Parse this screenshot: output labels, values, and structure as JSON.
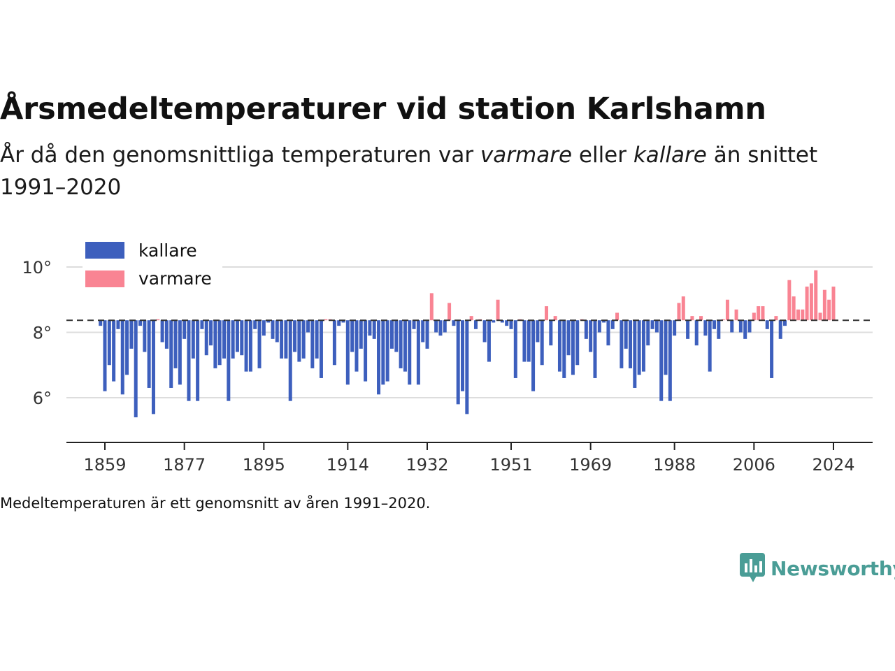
{
  "chart_data": {
    "type": "bar",
    "title": "Årsmedeltemperaturer vid station Karlshamn",
    "subtitle_parts": [
      "År då den genomsnittliga temperaturen var ",
      "varmare",
      " eller ",
      "kallare",
      " än snittet 1991–2020"
    ],
    "footnote": "Medeltemperaturen är ett genomsnitt av åren 1991–2020.",
    "baseline": 8.37,
    "xlim": [
      1858,
      2024
    ],
    "ylim": [
      4.6,
      10.8
    ],
    "yticks": [
      6,
      8,
      10
    ],
    "ytick_labels": [
      "6°",
      "8°",
      "10°"
    ],
    "xticks": [
      1859,
      1877,
      1895,
      1914,
      1932,
      1951,
      1969,
      1988,
      2006,
      2024
    ],
    "grid": true,
    "legend_position": "top-left",
    "series": [
      {
        "name": "kallare",
        "color": "#3d5fbd"
      },
      {
        "name": "varmare",
        "color": "#f98493"
      }
    ],
    "x_start": 1858,
    "values": [
      8.2,
      6.2,
      7.0,
      6.5,
      8.1,
      6.1,
      6.7,
      7.5,
      5.4,
      8.2,
      7.4,
      6.3,
      5.5,
      8.4,
      7.7,
      7.5,
      6.3,
      6.9,
      6.4,
      7.8,
      5.9,
      7.2,
      5.9,
      8.1,
      7.3,
      7.6,
      6.9,
      7.0,
      7.2,
      5.9,
      7.2,
      7.4,
      7.3,
      6.8,
      6.8,
      8.1,
      6.9,
      7.9,
      8.3,
      7.8,
      7.7,
      7.2,
      7.2,
      5.9,
      7.4,
      7.1,
      7.2,
      8.0,
      6.9,
      7.2,
      6.6,
      8.4,
      8.4,
      7.0,
      8.2,
      8.3,
      6.4,
      7.4,
      6.8,
      7.5,
      6.5,
      7.9,
      7.8,
      6.1,
      6.4,
      6.5,
      7.5,
      7.4,
      6.9,
      6.8,
      6.4,
      8.1,
      6.4,
      7.7,
      7.5,
      9.2,
      8.0,
      7.9,
      8.0,
      8.9,
      8.2,
      5.8,
      6.2,
      5.5,
      8.5,
      8.1,
      8.4,
      7.7,
      7.1,
      8.3,
      9.0,
      8.3,
      8.2,
      8.1,
      6.6,
      8.4,
      7.1,
      7.1,
      6.2,
      7.7,
      7.0,
      8.8,
      7.6,
      8.5,
      6.8,
      6.6,
      7.3,
      6.7,
      7.0,
      8.4,
      7.8,
      7.4,
      6.6,
      8.0,
      8.3,
      7.6,
      8.1,
      8.6,
      6.9,
      7.5,
      6.9,
      6.3,
      6.7,
      6.8,
      7.6,
      8.1,
      8.0,
      5.9,
      6.7,
      5.9,
      7.9,
      8.9,
      9.1,
      7.8,
      8.5,
      7.6,
      8.5,
      7.9,
      6.8,
      8.1,
      7.8,
      8.4,
      9.0,
      8.0,
      8.7,
      8.0,
      7.8,
      8.0,
      8.6,
      8.8,
      8.8,
      8.1,
      6.6,
      8.5,
      7.8,
      8.2,
      9.6,
      9.1,
      8.7,
      8.7,
      9.4,
      9.5,
      9.9,
      8.6,
      9.3,
      9.0,
      9.4
    ]
  },
  "brand": {
    "name": "Newsworthy",
    "color": "#4a9d96"
  }
}
